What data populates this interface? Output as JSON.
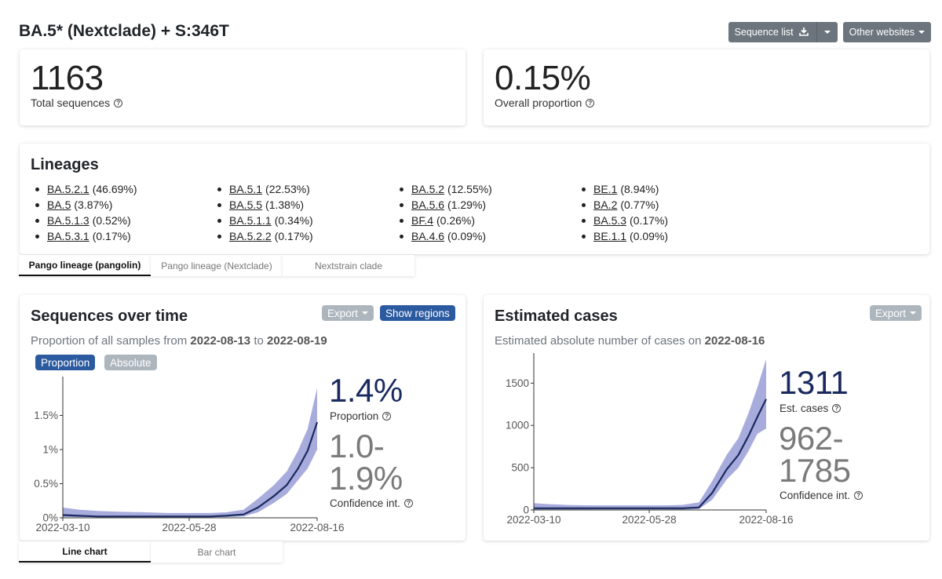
{
  "page_title": "BA.5* (Nextclade) + S:346T",
  "top_buttons": {
    "sequence_list": "Sequence list",
    "other_websites": "Other websites"
  },
  "summary": {
    "total_sequences_value": "1163",
    "total_sequences_label": "Total sequences",
    "overall_proportion_value": "0.15%",
    "overall_proportion_label": "Overall proportion"
  },
  "lineages": {
    "title": "Lineages",
    "items": [
      {
        "name": "BA.5.2.1",
        "pct": "(46.69%)"
      },
      {
        "name": "BA.5.1",
        "pct": "(22.53%)"
      },
      {
        "name": "BA.5.2",
        "pct": "(12.55%)"
      },
      {
        "name": "BE.1",
        "pct": "(8.94%)"
      },
      {
        "name": "BA.5",
        "pct": "(3.87%)"
      },
      {
        "name": "BA.5.5",
        "pct": "(1.38%)"
      },
      {
        "name": "BA.5.6",
        "pct": "(1.29%)"
      },
      {
        "name": "BA.2",
        "pct": "(0.77%)"
      },
      {
        "name": "BA.5.1.3",
        "pct": "(0.52%)"
      },
      {
        "name": "BA.5.1.1",
        "pct": "(0.34%)"
      },
      {
        "name": "BF.4",
        "pct": "(0.26%)"
      },
      {
        "name": "BA.5.3",
        "pct": "(0.17%)"
      },
      {
        "name": "BA.5.3.1",
        "pct": "(0.17%)"
      },
      {
        "name": "BA.5.2.2",
        "pct": "(0.17%)"
      },
      {
        "name": "BA.4.6",
        "pct": "(0.09%)"
      },
      {
        "name": "BE.1.1",
        "pct": "(0.09%)"
      }
    ],
    "tabs": [
      "Pango lineage (pangolin)",
      "Pango lineage (Nextclade)",
      "Nextstrain clade"
    ],
    "active_tab": 0
  },
  "sequences_over_time": {
    "title": "Sequences over time",
    "export_label": "Export",
    "show_regions_label": "Show regions",
    "subtitle_prefix": "Proportion of all samples from",
    "date_from": "2022-08-13",
    "subtitle_to": "to",
    "date_to": "2022-08-19",
    "toggle_proportion": "Proportion",
    "toggle_absolute": "Absolute",
    "stat_value": "1.4%",
    "stat_label": "Proportion",
    "ci_line1": "1.0-",
    "ci_line2": "1.9%",
    "ci_label": "Confidence int.",
    "tabs": [
      "Line chart",
      "Bar chart"
    ],
    "active_tab": 0
  },
  "estimated_cases": {
    "title": "Estimated cases",
    "export_label": "Export",
    "subtitle_prefix": "Estimated absolute number of cases on",
    "date": "2022-08-16",
    "stat_value": "1311",
    "stat_label": "Est. cases",
    "ci_line1": "962-",
    "ci_line2": "1785",
    "ci_label": "Confidence int."
  },
  "chart_data": [
    {
      "type": "area",
      "ylim": [
        0,
        0.02
      ],
      "y_ticks": [
        0,
        0.005,
        0.01,
        0.015
      ],
      "y_tick_labels": [
        "0%",
        "0.5%",
        "1%",
        "1.5%"
      ],
      "x_tick_labels": [
        "2022-03-10",
        "2022-05-28",
        "2022-08-16"
      ],
      "x": [
        "2022-03-10",
        "2022-03-20",
        "2022-04-01",
        "2022-04-15",
        "2022-05-01",
        "2022-05-15",
        "2022-05-28",
        "2022-06-10",
        "2022-06-20",
        "2022-07-01",
        "2022-07-10",
        "2022-07-20",
        "2022-07-28",
        "2022-08-04",
        "2022-08-10",
        "2022-08-16"
      ],
      "values": [
        0.0004,
        0.0003,
        0.0002,
        0.0002,
        0.0002,
        0.0002,
        0.0002,
        0.0002,
        0.0003,
        0.0005,
        0.0015,
        0.0032,
        0.0048,
        0.0072,
        0.0098,
        0.014
      ],
      "lower": [
        0.0001,
        0.0001,
        0.0001,
        0.0001,
        0.0001,
        0.0001,
        0.0001,
        0.0001,
        0.0001,
        0.0002,
        0.0008,
        0.0022,
        0.0035,
        0.0055,
        0.0072,
        0.01
      ],
      "upper": [
        0.0015,
        0.0012,
        0.001,
        0.0009,
        0.0008,
        0.0007,
        0.0007,
        0.0007,
        0.0008,
        0.0012,
        0.0028,
        0.0048,
        0.0068,
        0.0098,
        0.013,
        0.019
      ],
      "band_color": "#a8acdd",
      "line_color": "#1b2a5e"
    },
    {
      "type": "area",
      "ylim": [
        0,
        1800
      ],
      "y_ticks": [
        0,
        500,
        1000,
        1500
      ],
      "y_tick_labels": [
        "0",
        "500",
        "1000",
        "1500"
      ],
      "x_tick_labels": [
        "2022-03-10",
        "2022-05-28",
        "2022-08-16"
      ],
      "x": [
        "2022-03-10",
        "2022-03-20",
        "2022-04-01",
        "2022-04-15",
        "2022-05-01",
        "2022-05-15",
        "2022-05-28",
        "2022-06-10",
        "2022-06-20",
        "2022-07-01",
        "2022-07-10",
        "2022-07-20",
        "2022-07-28",
        "2022-08-04",
        "2022-08-10",
        "2022-08-16"
      ],
      "values": [
        20,
        20,
        20,
        20,
        20,
        20,
        20,
        20,
        20,
        30,
        200,
        480,
        650,
        880,
        1100,
        1311
      ],
      "lower": [
        5,
        5,
        5,
        5,
        5,
        5,
        5,
        5,
        5,
        10,
        120,
        360,
        500,
        700,
        900,
        962
      ],
      "upper": [
        80,
        70,
        60,
        55,
        55,
        55,
        55,
        55,
        60,
        90,
        340,
        650,
        850,
        1150,
        1450,
        1785
      ],
      "band_color": "#a8acdd",
      "line_color": "#1b2a5e"
    }
  ]
}
